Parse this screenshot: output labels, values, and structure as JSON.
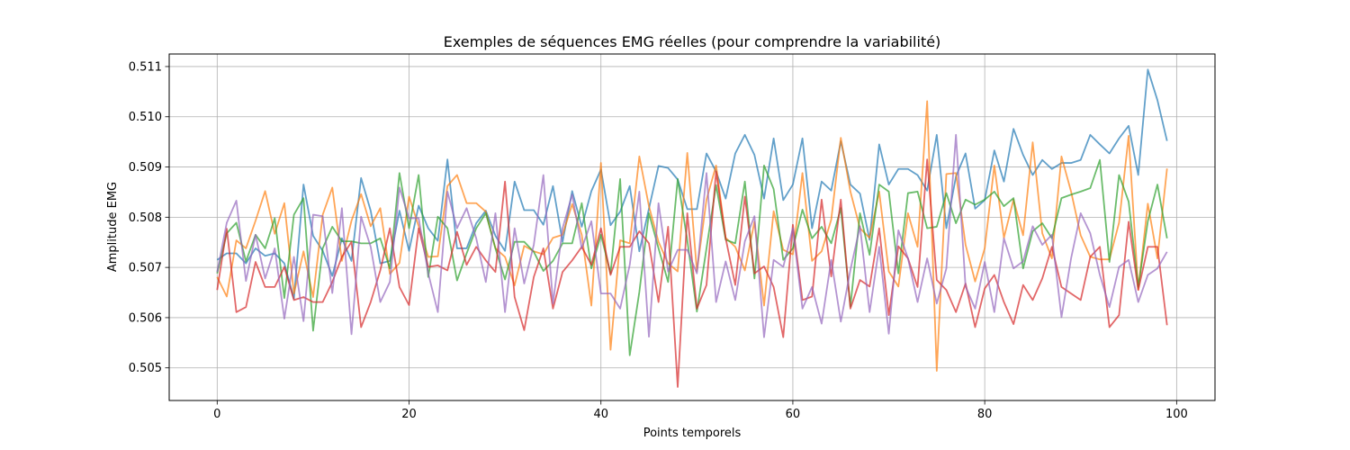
{
  "chart_data": {
    "type": "line",
    "title": "Exemples de séquences EMG réelles (pour comprendre la variabilité)",
    "xlabel": "Points temporels",
    "ylabel": "Amplitude EMG",
    "xlim": [
      -5,
      104
    ],
    "ylim": [
      0.50435,
      0.51125
    ],
    "xticks": [
      0,
      20,
      40,
      60,
      80,
      100
    ],
    "yticks": [
      0.505,
      0.506,
      0.507,
      0.508,
      0.509,
      0.51,
      0.511
    ],
    "xtick_labels": [
      "0",
      "20",
      "40",
      "60",
      "80",
      "100"
    ],
    "ytick_labels": [
      "0.505",
      "0.506",
      "0.507",
      "0.508",
      "0.509",
      "0.510",
      "0.511"
    ],
    "grid": true,
    "legend": false,
    "line_alpha": 0.7,
    "series": [
      {
        "color": "#1f77b4",
        "values": [
          0.50715,
          0.50728,
          0.50728,
          0.50708,
          0.50738,
          0.50723,
          0.50728,
          0.50708,
          0.50638,
          0.50865,
          0.50763,
          0.50733,
          0.50683,
          0.50758,
          0.50713,
          0.50878,
          0.50813,
          0.50708,
          0.50713,
          0.50813,
          0.50733,
          0.50823,
          0.50778,
          0.50753,
          0.50915,
          0.50738,
          0.50738,
          0.50788,
          0.50813,
          0.50763,
          0.50733,
          0.50871,
          0.50814,
          0.50814,
          0.50785,
          0.50862,
          0.50751,
          0.50852,
          0.50781,
          0.50852,
          0.50895,
          0.50784,
          0.50811,
          0.50862,
          0.50732,
          0.50817,
          0.50902,
          0.50898,
          0.50875,
          0.50816,
          0.50816,
          0.50927,
          0.50891,
          0.50837,
          0.50927,
          0.50964,
          0.50924,
          0.50837,
          0.50957,
          0.50834,
          0.50865,
          0.50957,
          0.50778,
          0.50871,
          0.50853,
          0.50951,
          0.50865,
          0.50847,
          0.50755,
          0.50945,
          0.50865,
          0.50896,
          0.50896,
          0.50884,
          0.50853,
          0.50964,
          0.50778,
          0.50881,
          0.50927,
          0.50817,
          0.50834,
          0.50933,
          0.50871,
          0.50976,
          0.50924,
          0.50884,
          0.50914,
          0.50896,
          0.50908,
          0.50908,
          0.50914,
          0.50964,
          0.50945,
          0.50927,
          0.50957,
          0.50982,
          0.50884,
          0.51094,
          0.51033,
          0.50952
        ]
      },
      {
        "color": "#ff7f0e",
        "values": [
          0.50681,
          0.50642,
          0.50754,
          0.50738,
          0.50793,
          0.50852,
          0.50767,
          0.50828,
          0.50648,
          0.50732,
          0.50641,
          0.50805,
          0.50859,
          0.50713,
          0.50793,
          0.50846,
          0.50782,
          0.50818,
          0.50687,
          0.50709,
          0.50841,
          0.50782,
          0.50721,
          0.50722,
          0.50862,
          0.50884,
          0.50828,
          0.50828,
          0.50811,
          0.50738,
          0.50721,
          0.50664,
          0.50743,
          0.50732,
          0.50726,
          0.50759,
          0.50765,
          0.50826,
          0.50765,
          0.50624,
          0.50908,
          0.50536,
          0.50754,
          0.50748,
          0.50921,
          0.50822,
          0.50751,
          0.50708,
          0.50692,
          0.50928,
          0.50692,
          0.50835,
          0.50903,
          0.50759,
          0.50741,
          0.50694,
          0.50791,
          0.50624,
          0.50812,
          0.50735,
          0.50726,
          0.50888,
          0.50713,
          0.50732,
          0.50795,
          0.50958,
          0.50851,
          0.50778,
          0.50759,
          0.50851,
          0.50692,
          0.50662,
          0.50808,
          0.50741,
          0.51031,
          0.50494,
          0.50886,
          0.50888,
          0.50745,
          0.50672,
          0.50738,
          0.50903,
          0.50759,
          0.50835,
          0.50764,
          0.50949,
          0.50768,
          0.50718,
          0.50921,
          0.50851,
          0.50764,
          0.50721,
          0.50716,
          0.50716,
          0.50789,
          0.50962,
          0.50656,
          0.50827,
          0.50718,
          0.50897
        ]
      },
      {
        "color": "#2ca02c",
        "values": [
          0.50688,
          0.50768,
          0.50789,
          0.50712,
          0.50765,
          0.50738,
          0.50798,
          0.50639,
          0.50805,
          0.50838,
          0.50574,
          0.50738,
          0.50781,
          0.50752,
          0.50752,
          0.50748,
          0.50748,
          0.50758,
          0.50698,
          0.50888,
          0.50778,
          0.50884,
          0.50681,
          0.50801,
          0.50778,
          0.50674,
          0.50728,
          0.50778,
          0.50808,
          0.50738,
          0.50676,
          0.50751,
          0.50751,
          0.50731,
          0.50693,
          0.50713,
          0.50748,
          0.50748,
          0.50828,
          0.50698,
          0.50765,
          0.50688,
          0.50876,
          0.50525,
          0.50651,
          0.50808,
          0.50738,
          0.50671,
          0.50876,
          0.50754,
          0.50612,
          0.50738,
          0.50864,
          0.50755,
          0.50748,
          0.50871,
          0.50678,
          0.50903,
          0.50856,
          0.50715,
          0.50738,
          0.50815,
          0.50758,
          0.50781,
          0.50748,
          0.50818,
          0.50622,
          0.50808,
          0.50725,
          0.50865,
          0.50851,
          0.50688,
          0.50848,
          0.50851,
          0.50778,
          0.50781,
          0.50848,
          0.50788,
          0.50835,
          0.50825,
          0.50835,
          0.50851,
          0.50822,
          0.50838,
          0.50698,
          0.50772,
          0.50788,
          0.50758,
          0.50838,
          0.50845,
          0.50851,
          0.50858,
          0.50914,
          0.50711,
          0.50884,
          0.50831,
          0.50661,
          0.50792,
          0.50865,
          0.50758
        ]
      },
      {
        "color": "#d62728",
        "values": [
          0.50655,
          0.50777,
          0.50611,
          0.50621,
          0.50711,
          0.50661,
          0.50661,
          0.50701,
          0.50635,
          0.50641,
          0.50631,
          0.50631,
          0.50671,
          0.50721,
          0.50751,
          0.50581,
          0.50631,
          0.50694,
          0.50778,
          0.50661,
          0.50625,
          0.50778,
          0.50701,
          0.50704,
          0.50694,
          0.50771,
          0.50705,
          0.50741,
          0.50714,
          0.50691,
          0.50871,
          0.50641,
          0.50575,
          0.50681,
          0.50738,
          0.50618,
          0.50691,
          0.50714,
          0.50741,
          0.50705,
          0.50778,
          0.50685,
          0.50741,
          0.50741,
          0.50772,
          0.50748,
          0.50631,
          0.50781,
          0.50462,
          0.50808,
          0.50618,
          0.50665,
          0.50891,
          0.50758,
          0.50665,
          0.50841,
          0.50688,
          0.50702,
          0.50661,
          0.50561,
          0.50785,
          0.50635,
          0.50642,
          0.50835,
          0.50682,
          0.50835,
          0.50618,
          0.50675,
          0.50662,
          0.50778,
          0.50605,
          0.50742,
          0.50718,
          0.50661,
          0.50915,
          0.50675,
          0.50655,
          0.50611,
          0.50668,
          0.50581,
          0.50658,
          0.50685,
          0.50631,
          0.50587,
          0.50665,
          0.50635,
          0.50678,
          0.50741,
          0.50661,
          0.50648,
          0.50635,
          0.50721,
          0.50741,
          0.50581,
          0.50605,
          0.50791,
          0.50655,
          0.50741,
          0.50741,
          0.50585
        ]
      },
      {
        "color": "#9467bd",
        "values": [
          0.50691,
          0.50789,
          0.50833,
          0.50673,
          0.50765,
          0.50678,
          0.50738,
          0.50598,
          0.50721,
          0.50593,
          0.50805,
          0.50802,
          0.50649,
          0.50818,
          0.50567,
          0.50801,
          0.50741,
          0.50631,
          0.50671,
          0.50859,
          0.50798,
          0.50798,
          0.50688,
          0.50611,
          0.50851,
          0.50778,
          0.50818,
          0.50758,
          0.50671,
          0.50808,
          0.50611,
          0.50778,
          0.50668,
          0.50745,
          0.50884,
          0.50628,
          0.50778,
          0.50845,
          0.50738,
          0.50792,
          0.50648,
          0.50648,
          0.50618,
          0.50705,
          0.50851,
          0.50562,
          0.50828,
          0.50692,
          0.50735,
          0.50735,
          0.50688,
          0.50888,
          0.50631,
          0.50712,
          0.50635,
          0.50752,
          0.50802,
          0.50561,
          0.50715,
          0.50701,
          0.50778,
          0.50618,
          0.50661,
          0.50588,
          0.50715,
          0.50592,
          0.50695,
          0.50782,
          0.50611,
          0.50741,
          0.50568,
          0.50774,
          0.50718,
          0.50631,
          0.50718,
          0.50628,
          0.50698,
          0.50964,
          0.50662,
          0.50618,
          0.50711,
          0.50611,
          0.50758,
          0.50698,
          0.50712,
          0.50782,
          0.50745,
          0.50765,
          0.50601,
          0.50718,
          0.50808,
          0.50768,
          0.50685,
          0.50621,
          0.50701,
          0.50715,
          0.50631,
          0.50685,
          0.50698,
          0.50731
        ]
      }
    ]
  }
}
